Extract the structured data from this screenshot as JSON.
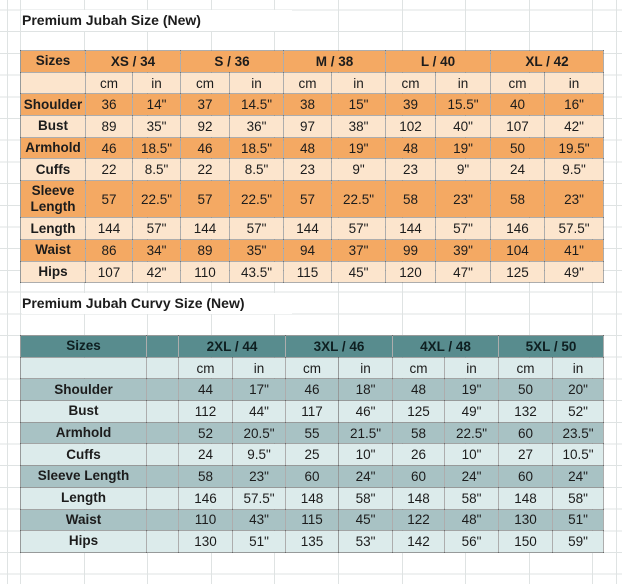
{
  "colors": {
    "orange_dark": "#f4a963",
    "orange_light": "#fce5cd",
    "teal_header": "#588c8e",
    "teal_dark": "#a8c2c4",
    "teal_light": "#dcebeb",
    "gridline": "#dfe3e3"
  },
  "table1": {
    "title": "Premium Jubah Size (New)",
    "sizes_label": "Sizes",
    "unit_cm": "cm",
    "unit_in": "in",
    "groups": [
      "XS / 34",
      "S / 36",
      "M / 38",
      "L / 40",
      "XL / 42"
    ],
    "rows": [
      {
        "label": "Shoulder",
        "values": [
          "36",
          "14\"",
          "37",
          "14.5\"",
          "38",
          "15\"",
          "39",
          "15.5\"",
          "40",
          "16\""
        ]
      },
      {
        "label": "Bust",
        "values": [
          "89",
          "35\"",
          "92",
          "36\"",
          "97",
          "38\"",
          "102",
          "40\"",
          "107",
          "42\""
        ]
      },
      {
        "label": "Armhold",
        "values": [
          "46",
          "18.5\"",
          "46",
          "18.5\"",
          "48",
          "19\"",
          "48",
          "19\"",
          "50",
          "19.5\""
        ]
      },
      {
        "label": "Cuffs",
        "values": [
          "22",
          "8.5\"",
          "22",
          "8.5\"",
          "23",
          "9\"",
          "23",
          "9\"",
          "24",
          "9.5\""
        ]
      },
      {
        "label": "Sleeve Length",
        "values": [
          "57",
          "22.5\"",
          "57",
          "22.5\"",
          "57",
          "22.5\"",
          "58",
          "23\"",
          "58",
          "23\""
        ]
      },
      {
        "label": "Length",
        "values": [
          "144",
          "57\"",
          "144",
          "57\"",
          "144",
          "57\"",
          "144",
          "57\"",
          "146",
          "57.5\""
        ]
      },
      {
        "label": "Waist",
        "values": [
          "86",
          "34\"",
          "89",
          "35\"",
          "94",
          "37\"",
          "99",
          "39\"",
          "104",
          "41\""
        ]
      },
      {
        "label": "Hips",
        "values": [
          "107",
          "42\"",
          "110",
          "43.5\"",
          "115",
          "45\"",
          "120",
          "47\"",
          "125",
          "49\""
        ]
      }
    ]
  },
  "table2": {
    "title": "Premium Jubah Curvy Size (New)",
    "sizes_label": "Sizes",
    "unit_cm": "cm",
    "unit_in": "in",
    "groups": [
      "2XL / 44",
      "3XL / 46",
      "4XL / 48",
      "5XL / 50"
    ],
    "rows": [
      {
        "label": "Shoulder",
        "values": [
          "44",
          "17\"",
          "46",
          "18\"",
          "48",
          "19\"",
          "50",
          "20\""
        ]
      },
      {
        "label": "Bust",
        "values": [
          "112",
          "44\"",
          "117",
          "46\"",
          "125",
          "49\"",
          "132",
          "52\""
        ]
      },
      {
        "label": "Armhold",
        "values": [
          "52",
          "20.5\"",
          "55",
          "21.5\"",
          "58",
          "22.5\"",
          "60",
          "23.5\""
        ]
      },
      {
        "label": "Cuffs",
        "values": [
          "24",
          "9.5\"",
          "25",
          "10\"",
          "26",
          "10\"",
          "27",
          "10.5\""
        ]
      },
      {
        "label": "Sleeve Length",
        "values": [
          "58",
          "23\"",
          "60",
          "24\"",
          "60",
          "24\"",
          "60",
          "24\""
        ]
      },
      {
        "label": "Length",
        "values": [
          "146",
          "57.5\"",
          "148",
          "58\"",
          "148",
          "58\"",
          "148",
          "58\""
        ]
      },
      {
        "label": "Waist",
        "values": [
          "110",
          "43\"",
          "115",
          "45\"",
          "122",
          "48\"",
          "130",
          "51\""
        ]
      },
      {
        "label": "Hips",
        "values": [
          "130",
          "51\"",
          "135",
          "53\"",
          "142",
          "56\"",
          "150",
          "59\""
        ]
      }
    ]
  }
}
